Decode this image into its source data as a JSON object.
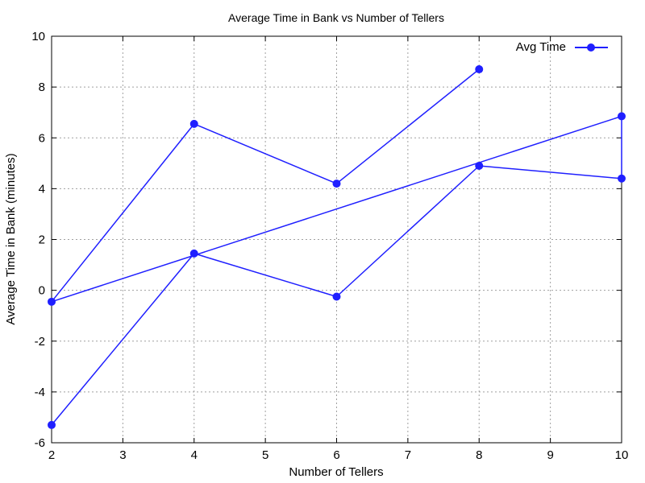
{
  "chart_data": {
    "type": "line",
    "title": "Average Time in Bank vs Number of Tellers",
    "xlabel": "Number of Tellers",
    "ylabel": "Average Time in Bank (minutes)",
    "xlim": [
      2,
      10
    ],
    "ylim": [
      -6,
      10
    ],
    "xticks": [
      2,
      3,
      4,
      5,
      6,
      7,
      8,
      9,
      10
    ],
    "yticks": [
      -6,
      -4,
      -2,
      0,
      2,
      4,
      6,
      8,
      10
    ],
    "grid": true,
    "legend_position": "top-right",
    "series": [
      {
        "name": "Avg Time",
        "color": "#1f1fff",
        "marker": "circle",
        "points": [
          [
            2,
            -5.3
          ],
          [
            4,
            1.45
          ],
          [
            6,
            -0.25
          ],
          [
            8,
            4.9
          ],
          [
            10,
            4.4
          ],
          [
            10,
            6.85
          ],
          [
            2,
            -0.45
          ],
          [
            4,
            6.55
          ],
          [
            6,
            4.2
          ],
          [
            8,
            8.7
          ]
        ]
      }
    ]
  }
}
